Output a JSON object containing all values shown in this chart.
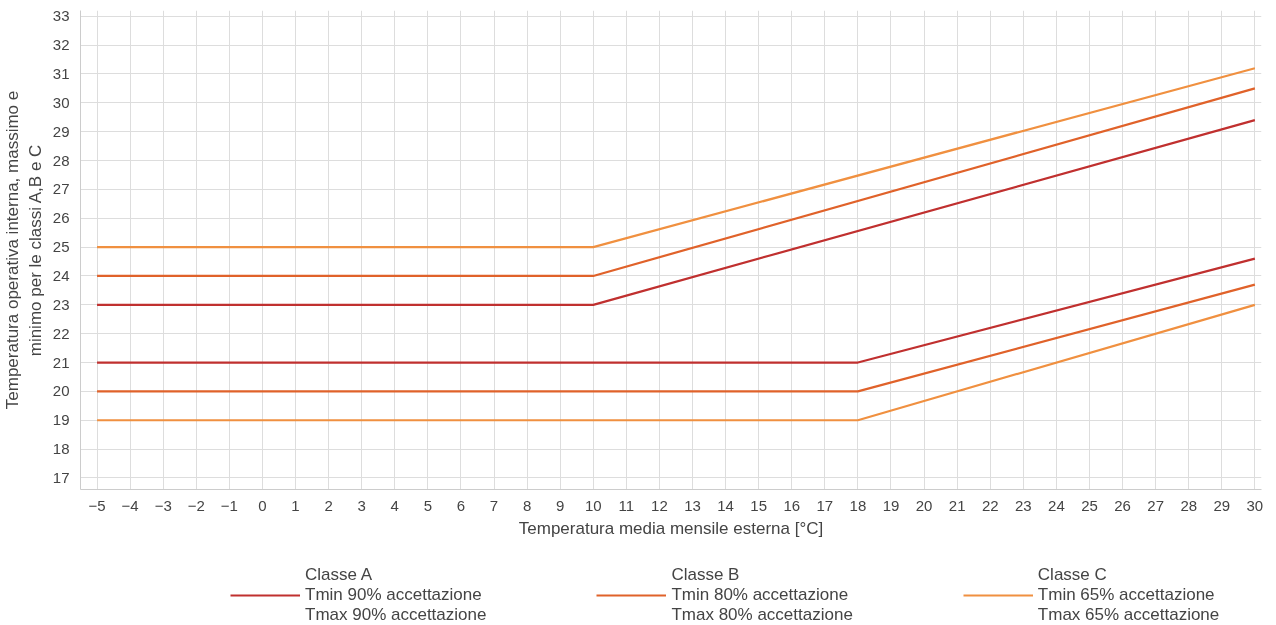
{
  "chart_data": {
    "type": "line",
    "xlabel": "Temperatura media mensile esterna [°C]",
    "ylabel": "Temperatura operativa interna, massimo e\nminimo per le classi A,B e C",
    "xlim": [
      -5.5,
      30.2
    ],
    "ylim": [
      16.6,
      33.2
    ],
    "xticks": [
      -5,
      -4,
      -3,
      -2,
      -1,
      0,
      1,
      2,
      3,
      4,
      5,
      6,
      7,
      8,
      9,
      10,
      11,
      12,
      13,
      14,
      15,
      16,
      17,
      18,
      19,
      20,
      21,
      22,
      23,
      24,
      25,
      26,
      27,
      28,
      29,
      30
    ],
    "yticks": [
      17,
      18,
      19,
      20,
      21,
      22,
      23,
      24,
      25,
      26,
      27,
      28,
      29,
      30,
      31,
      32,
      33
    ],
    "grid": true,
    "legend": "bottom",
    "marker": "none",
    "line_style": "solid",
    "series": [
      {
        "name": "Classe A\nTmin 90% accettazione\nTmax 90% accettazione",
        "color": "#c0302f",
        "x": [
          -5,
          10,
          30
        ],
        "values": [
          23,
          23,
          29.4
        ]
      },
      {
        "color": "#c0302f",
        "x": [
          -5,
          18,
          30
        ],
        "values": [
          21,
          21,
          24.6
        ]
      },
      {
        "name": "Classe B\nTmin 80% accettazione\nTmax 80% accettazione",
        "color": "#e0622a",
        "x": [
          -5,
          10,
          30
        ],
        "values": [
          24,
          24,
          30.5
        ]
      },
      {
        "color": "#e0622a",
        "x": [
          -5,
          18,
          30
        ],
        "values": [
          20,
          20,
          23.7
        ]
      },
      {
        "name": "Classe C\nTmin 65% accettazione\nTmax 65% accettazione",
        "color": "#f09040",
        "x": [
          -5,
          10,
          30
        ],
        "values": [
          25,
          25,
          31.2
        ]
      },
      {
        "color": "#f09040",
        "x": [
          -5,
          18,
          30
        ],
        "values": [
          19,
          19,
          23
        ]
      }
    ]
  }
}
